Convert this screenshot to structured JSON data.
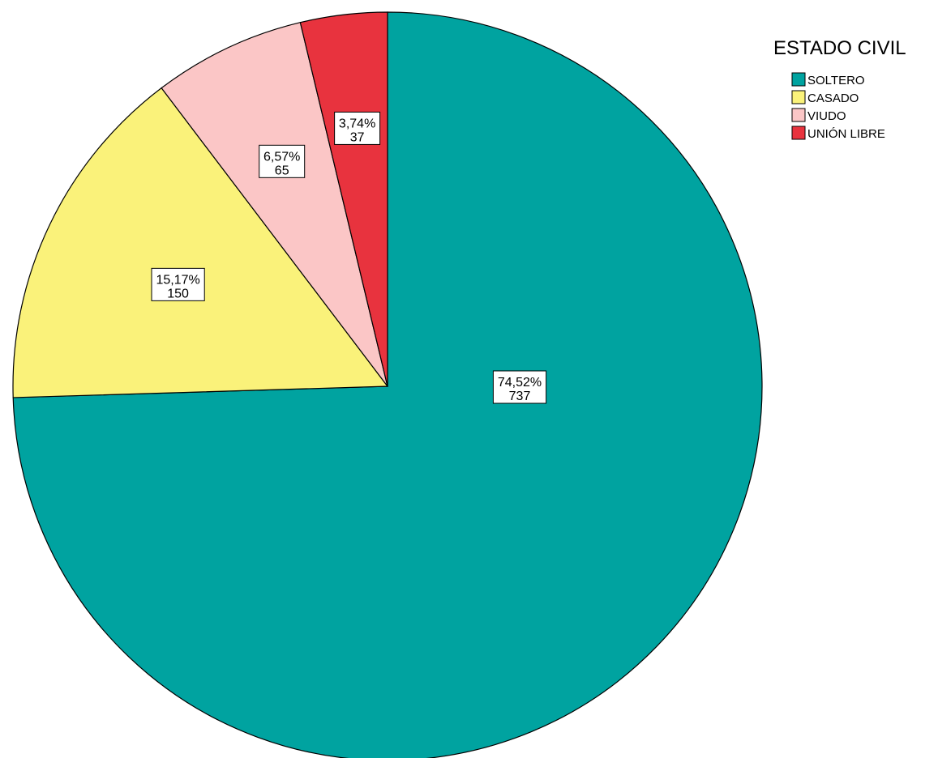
{
  "chart_data": {
    "type": "pie",
    "legend_title": "ESTADO CIVIL",
    "legend_position": "top-right",
    "start": "top",
    "direction": "clockwise",
    "slices": [
      {
        "label": "SOLTERO",
        "value": 737,
        "percent_label": "74,52%",
        "count_label": "737",
        "color": "#00A3A0"
      },
      {
        "label": "CASADO",
        "value": 150,
        "percent_label": "15,17%",
        "count_label": "150",
        "color": "#FAF27A"
      },
      {
        "label": "VIUDO",
        "value": 65,
        "percent_label": "6,57%",
        "count_label": "65",
        "color": "#FBC6C6"
      },
      {
        "label": "UNIÓN LIBRE",
        "value": 37,
        "percent_label": "3,74%",
        "count_label": "37",
        "color": "#E8333E"
      }
    ]
  }
}
